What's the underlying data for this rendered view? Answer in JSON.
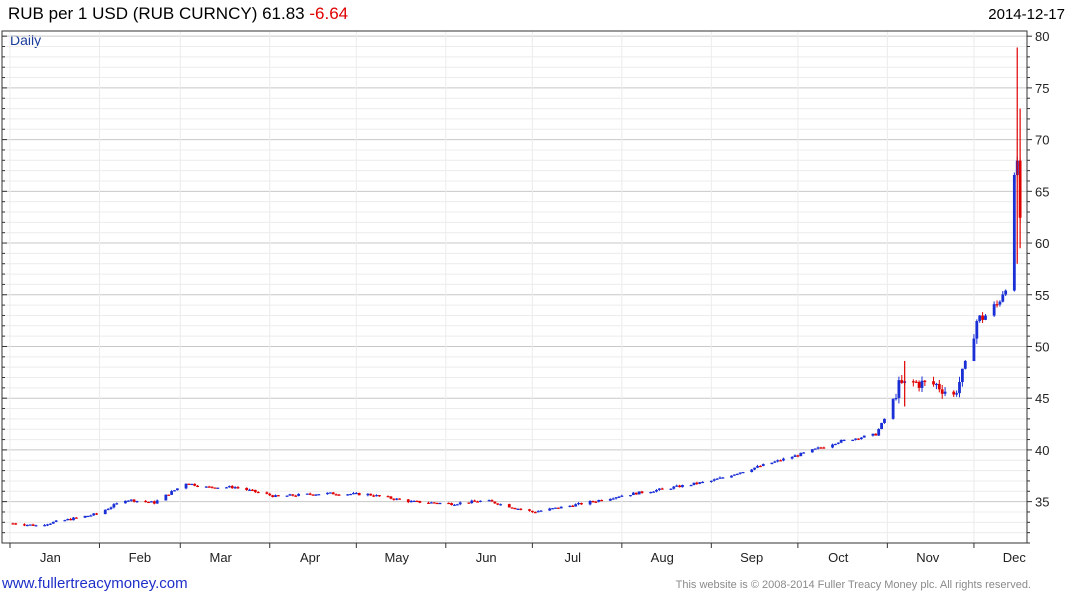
{
  "header": {
    "title": "RUB per 1 USD (RUB CURNCY) 61.83",
    "change": "-6.64",
    "date": "2014-12-17",
    "period": "Daily"
  },
  "footer": {
    "link": "www.fullertreacymoney.com",
    "copyright": "This website is © 2008-2014 Fuller Treacy Money plc. All rights reserved."
  },
  "colors": {
    "up": "#1a2fd6",
    "down": "#e00000",
    "grid": "#cfcfcf",
    "frame": "#333333"
  },
  "chart_data": {
    "type": "candlestick",
    "title": "RUB per 1 USD (RUB CURNCY)",
    "period": "Daily",
    "x_axis": {
      "months": [
        "Jan",
        "Feb",
        "Mar",
        "Apr",
        "May",
        "Jun",
        "Jul",
        "Aug",
        "Sep",
        "Oct",
        "Nov",
        "Dec"
      ]
    },
    "y_axis": {
      "position": "right",
      "ylim": [
        31,
        80.5
      ],
      "ticks": [
        35,
        40,
        45,
        50,
        55,
        60,
        65,
        70,
        75,
        80
      ]
    },
    "grid": true,
    "last_value": 61.83,
    "change": -6.64,
    "series_anchors": [
      [
        "2014-01-02",
        32.9
      ],
      [
        "2014-01-10",
        32.7
      ],
      [
        "2014-01-20",
        33.2
      ],
      [
        "2014-01-31",
        33.8
      ],
      [
        "2014-02-10",
        35.2
      ],
      [
        "2014-02-20",
        34.9
      ],
      [
        "2014-03-03",
        36.8
      ],
      [
        "2014-03-10",
        36.4
      ],
      [
        "2014-03-20",
        36.4
      ],
      [
        "2014-04-03",
        35.5
      ],
      [
        "2014-04-20",
        35.8
      ],
      [
        "2014-05-05",
        35.7
      ],
      [
        "2014-05-20",
        35.0
      ],
      [
        "2014-06-03",
        34.8
      ],
      [
        "2014-06-15",
        35.1
      ],
      [
        "2014-06-25",
        34.4
      ],
      [
        "2014-07-01",
        34.0
      ],
      [
        "2014-07-10",
        34.4
      ],
      [
        "2014-07-20",
        34.9
      ],
      [
        "2014-08-01",
        35.6
      ],
      [
        "2014-08-15",
        36.2
      ],
      [
        "2014-09-01",
        37.0
      ],
      [
        "2014-09-15",
        38.2
      ],
      [
        "2014-10-01",
        39.5
      ],
      [
        "2014-10-15",
        40.8
      ],
      [
        "2014-10-28",
        41.5
      ],
      [
        "2014-11-01",
        43.5
      ],
      [
        "2014-11-05",
        46.2
      ],
      [
        "2014-11-10",
        46.5
      ],
      [
        "2014-11-18",
        46.3
      ],
      [
        "2014-11-24",
        45.2
      ],
      [
        "2014-11-28",
        48.0
      ],
      [
        "2014-12-02",
        52.5
      ],
      [
        "2014-12-05",
        53.0
      ],
      [
        "2014-12-09",
        54.0
      ],
      [
        "2014-12-12",
        56.0
      ],
      [
        "2014-12-14",
        64.0
      ],
      [
        "2014-12-15",
        66.0
      ],
      [
        "2014-12-16",
        68.0
      ],
      [
        "2014-12-17",
        61.83
      ]
    ],
    "spikes": [
      {
        "date": "2014-12-16",
        "high": 78.9,
        "low": 58.0
      },
      {
        "date": "2014-12-17",
        "high": 73.0,
        "low": 59.5
      },
      {
        "date": "2014-11-07",
        "high": 48.6,
        "low": 44.2
      }
    ]
  }
}
